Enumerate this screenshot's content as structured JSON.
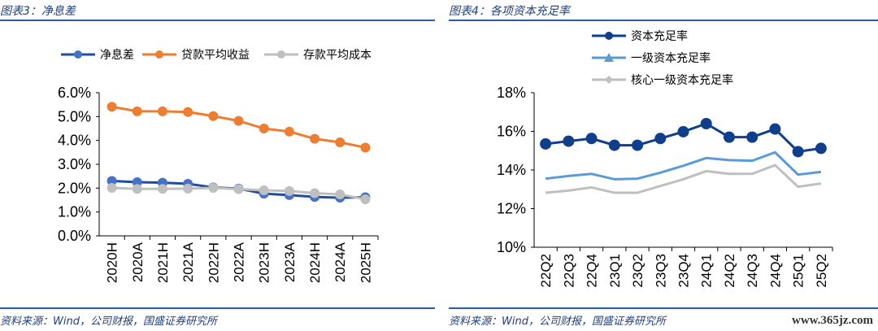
{
  "left": {
    "title": "图表3：净息差",
    "source": "资料来源：Wind，公司财报，国盛证券研究所"
  },
  "right": {
    "title": "图表4：各项资本充足率",
    "source": "资料来源：Wind，公司财报，国盛证券研究所"
  },
  "watermark": "www.365jz.com",
  "chart_data": [
    {
      "type": "line",
      "title": "净息差",
      "categories": [
        "2020H",
        "2020A",
        "2021H",
        "2021A",
        "2022H",
        "2022A",
        "2023H",
        "2023A",
        "2024H",
        "2024A",
        "2025H"
      ],
      "yticks": [
        "0.0%",
        "1.0%",
        "2.0%",
        "3.0%",
        "4.0%",
        "5.0%",
        "6.0%"
      ],
      "ylim": [
        0,
        6
      ],
      "legend": "top",
      "series": [
        {
          "name": "净息差",
          "color": "#4472c4",
          "line": "#1f4e9c",
          "marker": "circle",
          "values": [
            2.3,
            2.25,
            2.23,
            2.18,
            2.03,
            1.98,
            1.77,
            1.71,
            1.63,
            1.6,
            1.62
          ]
        },
        {
          "name": "贷款平均收益",
          "color": "#ed7d31",
          "line": "#ed7d31",
          "marker": "circle",
          "values": [
            5.41,
            5.22,
            5.22,
            5.19,
            5.02,
            4.82,
            4.5,
            4.37,
            4.07,
            3.92,
            3.7
          ]
        },
        {
          "name": "存款平均成本",
          "color": "#bfbfbf",
          "line": "#bfbfbf",
          "marker": "circle",
          "values": [
            2.01,
            1.97,
            1.97,
            1.98,
            2.01,
            1.96,
            1.91,
            1.88,
            1.79,
            1.74,
            1.53
          ]
        }
      ]
    },
    {
      "type": "line",
      "title": "各项资本充足率",
      "categories": [
        "22Q2",
        "22Q3",
        "22Q4",
        "23Q1",
        "23Q2",
        "23Q3",
        "23Q4",
        "24Q1",
        "24Q2",
        "24Q3",
        "24Q4",
        "25Q1",
        "25Q2"
      ],
      "yticks": [
        "10%",
        "12%",
        "14%",
        "16%",
        "18%"
      ],
      "ylim": [
        10,
        18
      ],
      "legend": "top-left",
      "series": [
        {
          "name": "资本充足率",
          "color": "#0f3e8c",
          "line": "#0f3e8c",
          "marker": "circle",
          "values": [
            15.35,
            15.49,
            15.63,
            15.28,
            15.28,
            15.63,
            15.98,
            16.4,
            15.7,
            15.7,
            16.12,
            14.95,
            15.12
          ]
        },
        {
          "name": "一级资本充足率",
          "color": "#5b9bd5",
          "line": "#5b9bd5",
          "marker": "triangle",
          "values": [
            13.55,
            13.69,
            13.8,
            13.52,
            13.55,
            13.86,
            14.22,
            14.62,
            14.51,
            14.48,
            14.91,
            13.76,
            13.9
          ]
        },
        {
          "name": "核心一级资本充足率",
          "color": "#bfbfbf",
          "line": "#bfbfbf",
          "marker": "diamond",
          "values": [
            12.82,
            12.93,
            13.1,
            12.82,
            12.82,
            13.17,
            13.52,
            13.94,
            13.8,
            13.8,
            14.25,
            13.13,
            13.3
          ]
        }
      ]
    }
  ]
}
